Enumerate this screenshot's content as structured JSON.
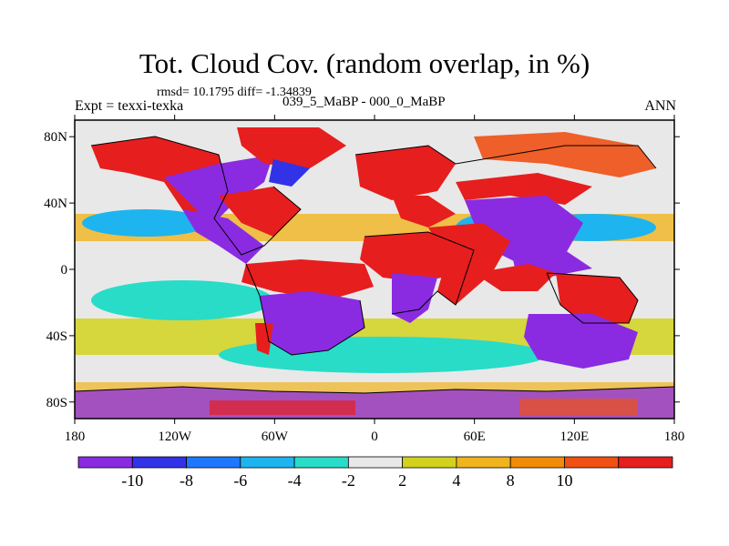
{
  "title": "Tot. Cloud Cov. (random overlap, in %)",
  "stats": "rmsd= 10.1795 diff= -1.34839",
  "experiment": "Expt = texxi-texka",
  "period": "039_5_MaBP - 000_0_MaBP",
  "season": "ANN",
  "map": {
    "lon_range": [
      -180,
      180
    ],
    "lat_range": [
      -90,
      90
    ],
    "lat_ticks": [
      {
        "value": 80,
        "label": "80N"
      },
      {
        "value": 40,
        "label": "40N"
      },
      {
        "value": 0,
        "label": "0"
      },
      {
        "value": -40,
        "label": "40S"
      },
      {
        "value": -80,
        "label": "80S"
      }
    ],
    "lon_ticks": [
      {
        "value": -180,
        "label": "180"
      },
      {
        "value": -120,
        "label": "120W"
      },
      {
        "value": -60,
        "label": "60W"
      },
      {
        "value": 0,
        "label": "0"
      },
      {
        "value": 60,
        "label": "60E"
      },
      {
        "value": 120,
        "label": "120E"
      },
      {
        "value": 180,
        "label": "180"
      }
    ]
  },
  "colorbar": {
    "colors": [
      "#8a2be2",
      "#3232e6",
      "#1e78ff",
      "#1eb4f0",
      "#28dcc8",
      "#e8e8e8",
      "#d2d21e",
      "#f0b41e",
      "#f08c0a",
      "#f05014",
      "#e61e1e"
    ],
    "labels": [
      "-10",
      "-8",
      "-6",
      "-4",
      "-2",
      "2",
      "4",
      "8",
      "10"
    ]
  }
}
